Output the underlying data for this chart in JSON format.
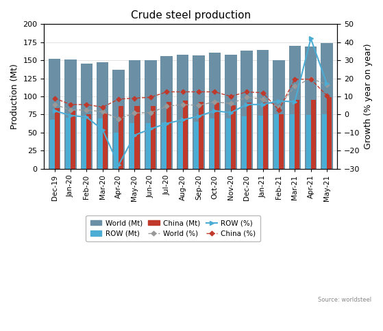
{
  "title": "Crude steel production",
  "ylabel_left": "Production (Mt)",
  "ylabel_right": "Growth (% year on year)",
  "source": "Source: worldsteel",
  "categories": [
    "Dec-19",
    "Jan-20",
    "Feb-20",
    "Mar-20",
    "Apr-20",
    "May-20",
    "Jun-20",
    "Jul-20",
    "Aug-20",
    "Sep-20",
    "Oct-20",
    "Nov-20",
    "Dec-20",
    "Jan-21",
    "Feb-21",
    "Mar-21",
    "Apr-21",
    "May-21"
  ],
  "world_mt": [
    152,
    151,
    145,
    147,
    137,
    150,
    150,
    156,
    158,
    157,
    161,
    158,
    163,
    164,
    150,
    170,
    169,
    174
  ],
  "row_mt": [
    68,
    71,
    70,
    70,
    50,
    63,
    63,
    64,
    64,
    65,
    70,
    70,
    72,
    73,
    75,
    75,
    74,
    75
  ],
  "china_mt": [
    84,
    80,
    75,
    77,
    87,
    87,
    87,
    92,
    94,
    92,
    91,
    88,
    91,
    91,
    75,
    95,
    95,
    99
  ],
  "world_pct": [
    5.5,
    2.5,
    2.5,
    1.5,
    -2.5,
    0.8,
    1.0,
    4.5,
    5.5,
    5.0,
    7.0,
    6.0,
    9.5,
    8.5,
    4.0,
    15.5,
    20.0,
    16.5
  ],
  "row_pct": [
    2.0,
    -0.5,
    -1.5,
    -8.5,
    -28.0,
    -11.5,
    -8.0,
    -5.0,
    -3.0,
    -1.0,
    2.0,
    1.0,
    5.5,
    5.5,
    7.5,
    7.0,
    42.0,
    17.0
  ],
  "china_pct": [
    9.0,
    5.5,
    5.5,
    4.0,
    8.5,
    9.0,
    9.5,
    12.5,
    12.5,
    12.5,
    12.5,
    10.0,
    12.5,
    12.0,
    2.5,
    19.5,
    19.5,
    10.5
  ],
  "color_world": "#6b8fa5",
  "color_row": "#4bacd4",
  "color_china": "#c0392b",
  "color_world_line": "#999999",
  "color_row_line": "#4bacd4",
  "color_china_line": "#c0392b",
  "ylim_left": [
    0,
    200
  ],
  "ylim_right": [
    -30,
    50
  ],
  "yticks_left": [
    0,
    25,
    50,
    75,
    100,
    125,
    150,
    175,
    200
  ],
  "yticks_right": [
    -30,
    -20,
    -10,
    0,
    10,
    20,
    30,
    40,
    50
  ],
  "background": "#ffffff"
}
